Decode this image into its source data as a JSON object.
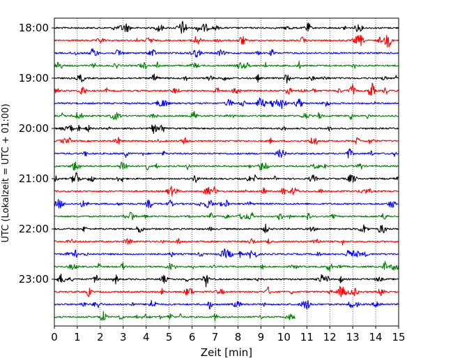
{
  "chart_data": {
    "type": "line",
    "title": "",
    "xlabel": "Zeit  [min]",
    "ylabel": "UTC (Lokalzeit = UTC + 01:00)",
    "xlim": [
      0,
      15
    ],
    "x_ticks": [
      "0",
      "1",
      "2",
      "3",
      "4",
      "5",
      "6",
      "7",
      "8",
      "9",
      "10",
      "11",
      "12",
      "13",
      "14",
      "15"
    ],
    "y_tick_labels": [
      "18:00",
      "19:00",
      "20:00",
      "21:00",
      "22:00",
      "23:00"
    ],
    "y_tick_rows": [
      0,
      4,
      8,
      12,
      16,
      20
    ],
    "grid": "vertical dotted at each minute",
    "color_cycle": [
      "#000000",
      "#ff0000",
      "#0000ff",
      "#008000"
    ],
    "rows": [
      {
        "start": "18:00",
        "end_min": 15
      },
      {
        "start": "18:15",
        "end_min": 15
      },
      {
        "start": "18:30",
        "end_min": 15
      },
      {
        "start": "18:45",
        "end_min": 15
      },
      {
        "start": "19:00",
        "end_min": 15
      },
      {
        "start": "19:15",
        "end_min": 15
      },
      {
        "start": "19:30",
        "end_min": 15
      },
      {
        "start": "19:45",
        "end_min": 15
      },
      {
        "start": "20:00",
        "end_min": 15
      },
      {
        "start": "20:15",
        "end_min": 15
      },
      {
        "start": "20:30",
        "end_min": 15
      },
      {
        "start": "20:45",
        "end_min": 15
      },
      {
        "start": "21:00",
        "end_min": 15
      },
      {
        "start": "21:15",
        "end_min": 15
      },
      {
        "start": "21:30",
        "end_min": 15
      },
      {
        "start": "21:45",
        "end_min": 15
      },
      {
        "start": "22:00",
        "end_min": 15
      },
      {
        "start": "22:15",
        "end_min": 15
      },
      {
        "start": "22:30",
        "end_min": 15
      },
      {
        "start": "22:45",
        "end_min": 15
      },
      {
        "start": "23:00",
        "end_min": 15
      },
      {
        "start": "23:15",
        "end_min": 15
      },
      {
        "start": "23:30",
        "end_min": 15
      },
      {
        "start": "23:45",
        "end_min": 10.5
      }
    ]
  }
}
